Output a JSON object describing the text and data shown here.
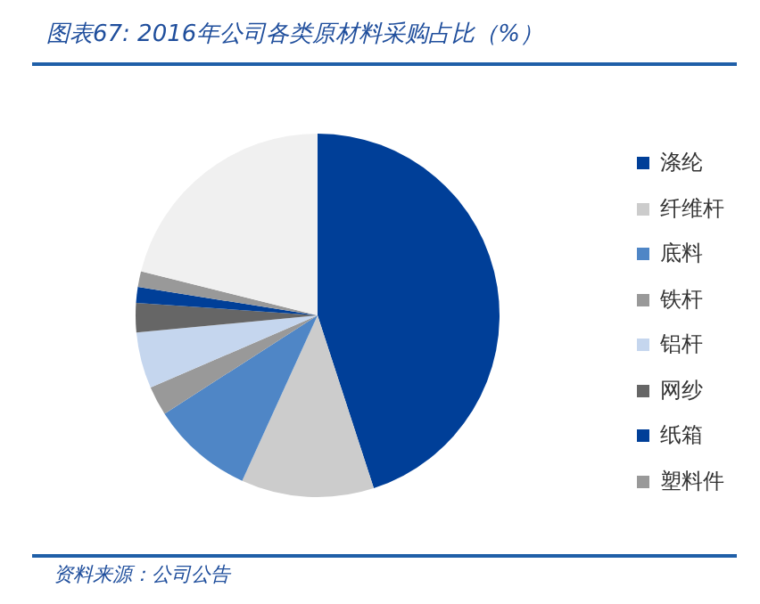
{
  "chart_data": {
    "type": "pie",
    "title": "图表67: 2016年公司各类原材料采购占比（%）",
    "categories": [
      "涤纶",
      "纤维杆",
      "底料",
      "铁杆",
      "铝杆",
      "网纱",
      "纸箱",
      "塑料件",
      null
    ],
    "values": [
      45,
      11.8,
      9.1,
      2.6,
      5,
      2.6,
      1.4,
      1.4,
      21.1
    ],
    "colors": [
      "#003f98",
      "#cccccc",
      "#4f86c6",
      "#999999",
      "#c5d6ee",
      "#666666",
      "#003f98",
      "#999999",
      "#f0f0f0"
    ],
    "legend": "right",
    "annotations": [
      "资料来源：公司公告"
    ]
  }
}
